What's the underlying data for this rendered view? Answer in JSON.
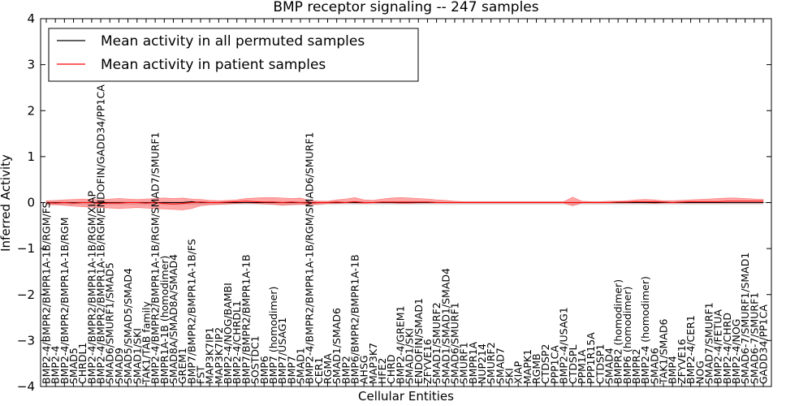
{
  "chart_data": {
    "type": "line",
    "title": "BMP receptor signaling -- 247 samples",
    "xlabel": "Cellular Entities",
    "ylabel": "Inferred Activity",
    "ylim": [
      -4,
      4
    ],
    "yticks": [
      -4,
      -3,
      -2,
      -1,
      0,
      1,
      2,
      3,
      4
    ],
    "grid": false,
    "legend_position": "top-left",
    "categories": [
      "BMP2-4/BMPR2/BMPR1A-1B/RGM/FS",
      "BMP2-4",
      "BMP2-4/BMPR2/BMPR1A-1B/RGM",
      "SMAD5",
      "CHRDL1",
      "BMP2-4/BMPR2/BMPR1A-1B/RGM/XIAP",
      "BMP2-4/BMPR2/BMPR1A-1B/RGM/ENDOFIN/GADD34/PP1CA",
      "SMAD6/SMURF1/SMAD5",
      "SMAD9",
      "SMAD5/SMAD5/SMAD4",
      "SMAD1/SKI",
      "TAK1/TAB family",
      "BMP2-4/BMPR2/BMPR1A-1B/RGM/SMAD7/SMURF1",
      "BMPR1A-1B (homodimer)",
      "SMAD8A/SMAD8A/SMAD4",
      "GREM1",
      "BMP7/BMPR2/BMPR1A-1B/FS",
      "FST",
      "MAP3K7IP1",
      "MAP3K7IP2",
      "BMP2-4/NOG/BAMBI",
      "BMP2-4/CHRDL1",
      "BMP7/BMPR2/BMPR1A-1B",
      "SOSTDC1",
      "BMP6",
      "BMP7 (homodimer)",
      "BMP7/USAG1",
      "BMP7",
      "SMAD1",
      "BMP2-4/BMPR2/BMPR1A-1B/RGM/SMAD6/SMURF1",
      "CER1",
      "RGMA",
      "SMAD1/SMAD6",
      "BMP2",
      "BMP6/BMPR2/BMPR1A-1B",
      "AHSG",
      "MAP3K7",
      "HFE2",
      "CHRD",
      "BMP2-4/GREM1",
      "SMAD1/SKI",
      "ENDOFIN/SMAD1",
      "ZFYVE16",
      "SMAD1/SMURF2",
      "SMAD1/SMAD1/SMAD4",
      "SMAD6/SMURF1",
      "SMURF1",
      "BMPR1A",
      "NUP214",
      "SMURF2",
      "SMAD7",
      "SKI",
      "XIAP",
      "MAPK1",
      "RGMB",
      "CTDSP2",
      "PPP1CA",
      "BMP2-4/USAG1",
      "CTDSPL",
      "PPM1A",
      "PPP1R15A",
      "CTDSP1",
      "SMAD4",
      "BMPR2 (homodimer)",
      "BMP6 (homodimer)",
      "BMPR2",
      "BMP2-4 (homodimer)",
      "SMAD6",
      "TAK1/SMAD6",
      "BMP4",
      "ZFYVE16",
      "BMP2-4/CER1",
      "NOG",
      "SMAD7/SMURF1",
      "BMP2-4/FETUA",
      "BMP2-4/CHRD",
      "BMP2-4/NOG",
      "SMAD6-7/SMURF1/SMAD1",
      "SMAD6-7/SMURF1",
      "GADD34/PP1CA"
    ],
    "series": [
      {
        "name": "Mean activity in all permuted samples",
        "color": "#000000",
        "values": [
          0,
          0,
          0,
          0,
          0,
          0,
          0,
          0,
          0,
          0,
          0,
          0,
          0,
          0,
          0,
          0,
          0.02,
          0,
          0,
          0,
          0,
          0,
          0,
          0,
          0,
          0,
          0,
          0,
          0,
          0,
          0,
          0,
          0,
          0,
          0,
          0,
          0,
          0,
          0,
          0,
          0,
          0,
          0,
          0,
          0,
          0,
          0,
          0,
          0,
          0,
          0,
          0,
          0,
          0,
          0,
          0,
          0,
          0,
          0,
          0,
          0,
          0,
          0,
          0,
          0,
          0,
          0,
          0,
          0,
          0,
          0,
          0,
          0,
          0,
          0,
          0,
          0,
          0,
          0,
          0
        ]
      },
      {
        "name": "Mean activity in patient samples",
        "color": "#ff0000",
        "values": [
          0,
          -0.01,
          0,
          -0.01,
          0,
          0,
          -0.02,
          -0.01,
          -0.01,
          0,
          0,
          -0.01,
          0,
          -0.02,
          -0.03,
          -0.02,
          0,
          0.01,
          0,
          0,
          0.01,
          0.02,
          0.03,
          0.02,
          0.01,
          0.01,
          0,
          0.01,
          0,
          -0.01,
          0,
          0,
          0.01,
          0,
          0.02,
          0,
          0,
          0.01,
          0.01,
          0.01,
          0.01,
          0.01,
          0.01,
          0,
          0,
          0,
          0,
          0,
          0,
          0,
          0,
          0,
          0,
          0,
          0,
          0,
          0,
          0,
          0,
          0,
          0,
          0,
          0,
          0.01,
          0.01,
          0.02,
          0.02,
          0.02,
          0.01,
          0,
          0.01,
          0.02,
          0.02,
          0.02,
          0.02,
          0.03,
          0.03,
          0.03,
          0.03,
          0.03
        ]
      }
    ],
    "band_upper": [
      0.04,
      0.05,
      0.06,
      0.07,
      0.08,
      0.07,
      0.06,
      0.08,
      0.09,
      0.08,
      0.07,
      0.08,
      0.09,
      0.1,
      0.09,
      0.1,
      0.08,
      0.07,
      0.05,
      0.04,
      0.05,
      0.06,
      0.09,
      0.1,
      0.11,
      0.11,
      0.1,
      0.09,
      0.1,
      0.05,
      0.03,
      0.03,
      0.06,
      0.08,
      0.11,
      0.06,
      0.05,
      0.08,
      0.1,
      0.11,
      0.1,
      0.09,
      0.08,
      0.06,
      0.05,
      0.03,
      0.02,
      0.02,
      0.02,
      0.02,
      0.02,
      0.02,
      0.02,
      0.02,
      0.02,
      0.02,
      0.02,
      0.02,
      0.12,
      0.03,
      0.02,
      0.02,
      0.03,
      0.03,
      0.04,
      0.06,
      0.07,
      0.06,
      0.04,
      0.04,
      0.05,
      0.06,
      0.07,
      0.08,
      0.09,
      0.1,
      0.1,
      0.09,
      0.08,
      0.07
    ],
    "band_lower": [
      -0.04,
      -0.05,
      -0.06,
      -0.08,
      -0.09,
      -0.1,
      -0.11,
      -0.12,
      -0.13,
      -0.12,
      -0.11,
      -0.12,
      -0.13,
      -0.14,
      -0.15,
      -0.16,
      -0.13,
      -0.07,
      -0.05,
      -0.04,
      -0.03,
      -0.02,
      -0.01,
      -0.02,
      -0.03,
      -0.04,
      -0.06,
      -0.05,
      -0.04,
      -0.05,
      -0.04,
      -0.02,
      -0.02,
      -0.01,
      -0.01,
      -0.02,
      -0.01,
      -0.01,
      -0.01,
      -0.02,
      -0.02,
      -0.01,
      -0.01,
      -0.01,
      -0.01,
      -0.01,
      -0.01,
      -0.01,
      -0.01,
      -0.01,
      -0.01,
      -0.01,
      -0.01,
      -0.01,
      -0.01,
      -0.01,
      -0.01,
      -0.01,
      -0.07,
      -0.01,
      -0.01,
      -0.01,
      -0.01,
      -0.01,
      -0.01,
      -0.01,
      -0.01,
      -0.02,
      -0.01,
      -0.01,
      -0.01,
      -0.01,
      -0.01,
      -0.01,
      -0.01,
      -0.01,
      -0.01,
      -0.01,
      -0.01,
      -0.01
    ],
    "band_color": "#ff0000",
    "grey_band_upper": 0.03,
    "grey_band_lower": -0.05,
    "grey_band_color": "#aaaaaa"
  }
}
